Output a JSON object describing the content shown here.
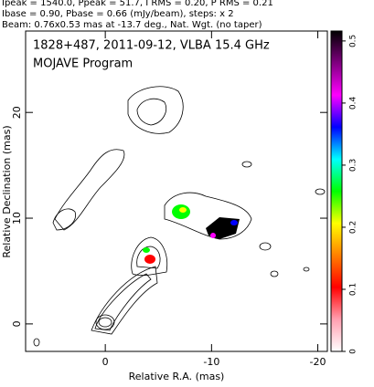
{
  "chart_data": {
    "type": "contour",
    "header": [
      "Ipeak = 1540.0, Ppeak = 51.7, I RMS = 0.20, P RMS = 0.21",
      "Ibase = 0.90, Pbase = 0.66 (mJy/beam), steps: x 2",
      "Beam: 0.76x0.53 mas at -13.7 deg., Nat. Wgt. (no taper)"
    ],
    "title": "1828+487, 2011-09-12, VLBA 15.4 GHz",
    "subtitle": "MOJAVE Program",
    "xlabel": "Relative R.A. (mas)",
    "ylabel": "Relative Declination (mas)",
    "xlim": [
      7.5,
      -20.9
    ],
    "xticks": [
      0,
      -10,
      -20
    ],
    "ylim": [
      -2.6,
      27.7
    ],
    "yticks": [
      0,
      10,
      20
    ],
    "clim": [
      0,
      0.516
    ],
    "cticks": [
      0,
      0.1,
      0.2,
      0.3,
      0.4,
      0.5
    ],
    "colormap": [
      "#ffffff",
      "#ff9fb0",
      "#ff0000",
      "#ff8000",
      "#ffff00",
      "#00ff00",
      "#00ffff",
      "#0000ff",
      "#ff00ff",
      "#800080",
      "#000000"
    ]
  }
}
